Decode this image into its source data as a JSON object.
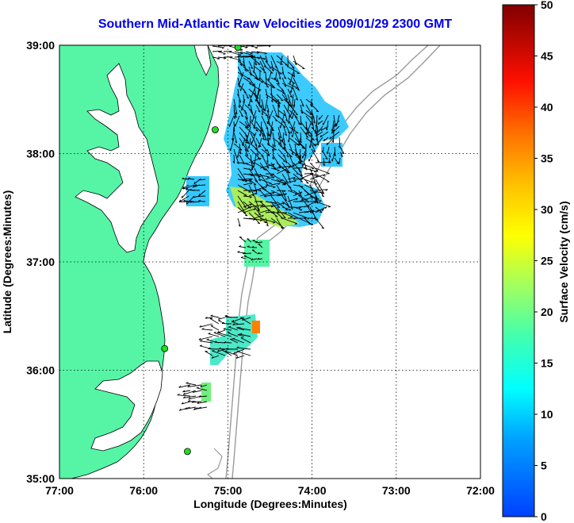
{
  "title": "Southern Mid-Atlantic Raw Velocities 2009/01/29 2300 GMT",
  "x_axis": {
    "label": "Longitude (Degrees:Minutes)",
    "ticks": [
      "77:00",
      "76:00",
      "75:00",
      "74:00",
      "73:00",
      "72:00"
    ],
    "values": [
      -77,
      -76,
      -75,
      -74,
      -73,
      -72
    ]
  },
  "y_axis": {
    "label": "Latitude (Degrees:Minutes)",
    "ticks": [
      "35:00",
      "36:00",
      "37:00",
      "38:00",
      "39:00"
    ],
    "values": [
      35,
      36,
      37,
      38,
      39
    ]
  },
  "colorbar": {
    "label": "Surface Velocity (cm/s)",
    "ticks": [
      "0",
      "5",
      "10",
      "15",
      "20",
      "25",
      "30",
      "35",
      "40",
      "45",
      "50"
    ],
    "min": 0,
    "max": 50
  },
  "colors": {
    "land": "#55f5a5",
    "isobath": "#9a9a9a",
    "grid": "#000000",
    "station": "#22dd22"
  },
  "stations": [
    {
      "lon": -74.88,
      "lat": 38.98
    },
    {
      "lon": -75.15,
      "lat": 38.22
    },
    {
      "lon": -75.75,
      "lat": 36.2
    },
    {
      "lon": -75.48,
      "lat": 35.25
    }
  ]
}
